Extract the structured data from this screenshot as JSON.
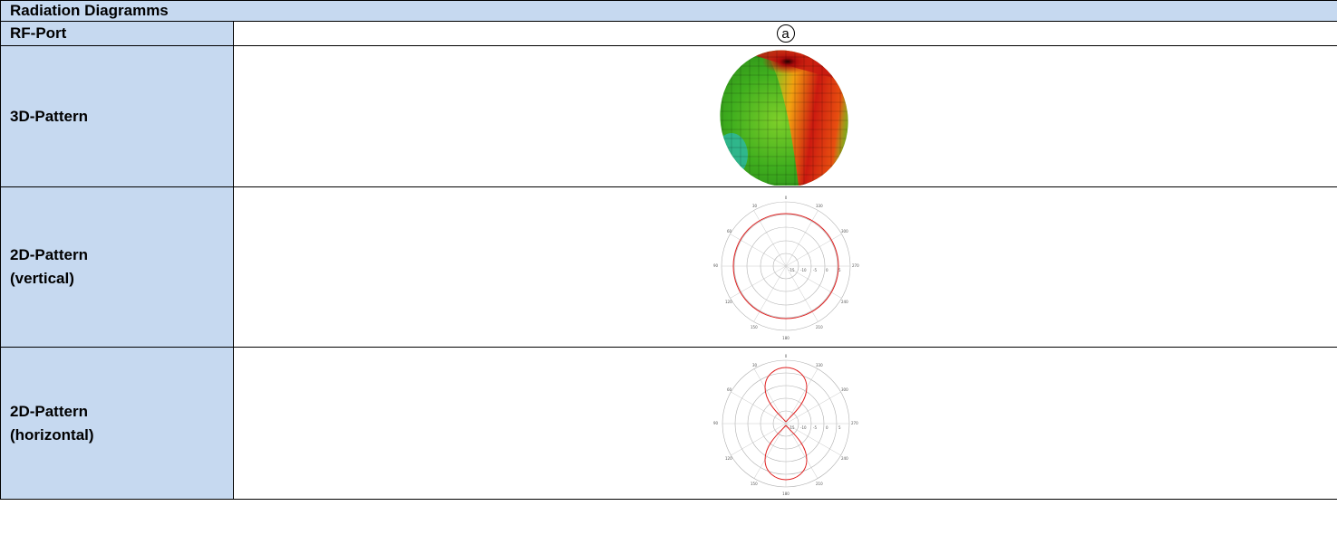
{
  "table": {
    "title": "Radiation Diagramms",
    "rows": [
      {
        "label": "RF-Port",
        "value": "a"
      },
      {
        "label": "3D-Pattern"
      },
      {
        "label_line1": "2D-Pattern",
        "label_line2": "(vertical)"
      },
      {
        "label_line1": "2D-Pattern",
        "label_line2": "(horizontal)"
      }
    ]
  },
  "colors": {
    "header_fill": "#c6d9f0",
    "border": "#000000",
    "pattern_trace": "#e02020",
    "grid": "#b0b0b0"
  },
  "polar": {
    "angle_labels": [
      "0",
      "30",
      "60",
      "90",
      "120",
      "150",
      "180",
      "210",
      "240",
      "270",
      "300",
      "330"
    ],
    "radial_labels": [
      "-15",
      "-10",
      "-5",
      "0",
      "5"
    ],
    "vertical_top_label": "0",
    "vertical_bottom_label": "180"
  }
}
